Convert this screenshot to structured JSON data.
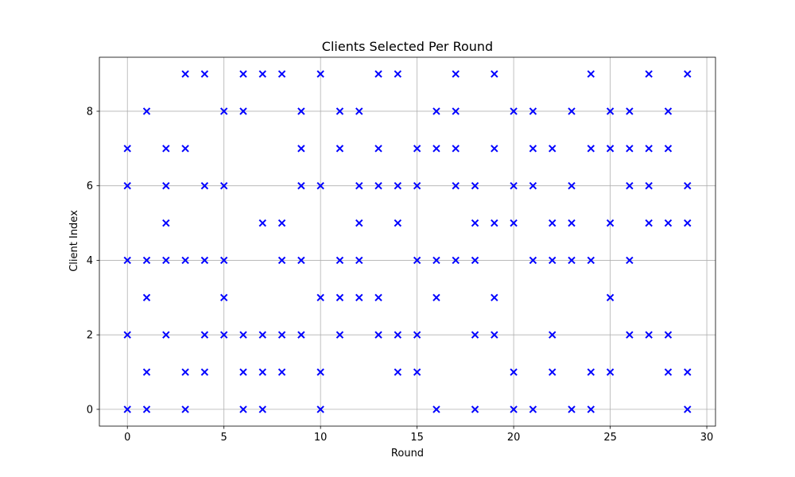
{
  "chart_data": {
    "type": "scatter",
    "title": "Clients Selected Per Round",
    "xlabel": "Round",
    "ylabel": "Client Index",
    "xlim": [
      -1.45,
      30.45
    ],
    "ylim": [
      -0.45,
      9.45
    ],
    "xticks": [
      0,
      5,
      10,
      15,
      20,
      25,
      30
    ],
    "yticks": [
      0,
      2,
      4,
      6,
      8
    ],
    "grid": true,
    "marker": "x",
    "marker_color": "#0000ff",
    "rounds": [
      {
        "x": 0,
        "clients": [
          0,
          2,
          4,
          6,
          7
        ]
      },
      {
        "x": 1,
        "clients": [
          0,
          1,
          3,
          4,
          8
        ]
      },
      {
        "x": 2,
        "clients": [
          2,
          4,
          5,
          6,
          7
        ]
      },
      {
        "x": 3,
        "clients": [
          0,
          1,
          4,
          7,
          9
        ]
      },
      {
        "x": 4,
        "clients": [
          1,
          2,
          4,
          6,
          9
        ]
      },
      {
        "x": 5,
        "clients": [
          2,
          3,
          4,
          6,
          8
        ]
      },
      {
        "x": 6,
        "clients": [
          0,
          1,
          2,
          8,
          9
        ]
      },
      {
        "x": 7,
        "clients": [
          0,
          1,
          2,
          5,
          9
        ]
      },
      {
        "x": 8,
        "clients": [
          1,
          2,
          4,
          5,
          9
        ]
      },
      {
        "x": 9,
        "clients": [
          2,
          4,
          6,
          7,
          8
        ]
      },
      {
        "x": 10,
        "clients": [
          0,
          1,
          3,
          6,
          9
        ]
      },
      {
        "x": 11,
        "clients": [
          2,
          3,
          4,
          7,
          8
        ]
      },
      {
        "x": 12,
        "clients": [
          3,
          4,
          5,
          6,
          8
        ]
      },
      {
        "x": 13,
        "clients": [
          2,
          3,
          6,
          7,
          9
        ]
      },
      {
        "x": 14,
        "clients": [
          1,
          2,
          5,
          6,
          9
        ]
      },
      {
        "x": 15,
        "clients": [
          1,
          2,
          4,
          6,
          7
        ]
      },
      {
        "x": 16,
        "clients": [
          0,
          3,
          4,
          7,
          8
        ]
      },
      {
        "x": 17,
        "clients": [
          4,
          6,
          7,
          8,
          9
        ]
      },
      {
        "x": 18,
        "clients": [
          0,
          2,
          4,
          5,
          6
        ]
      },
      {
        "x": 19,
        "clients": [
          2,
          3,
          5,
          7,
          9
        ]
      },
      {
        "x": 20,
        "clients": [
          0,
          1,
          5,
          6,
          8
        ]
      },
      {
        "x": 21,
        "clients": [
          0,
          4,
          6,
          7,
          8
        ]
      },
      {
        "x": 22,
        "clients": [
          1,
          2,
          4,
          5,
          7
        ]
      },
      {
        "x": 23,
        "clients": [
          0,
          4,
          5,
          6,
          8
        ]
      },
      {
        "x": 24,
        "clients": [
          0,
          1,
          4,
          7,
          9
        ]
      },
      {
        "x": 25,
        "clients": [
          1,
          3,
          5,
          7,
          8
        ]
      },
      {
        "x": 26,
        "clients": [
          2,
          4,
          6,
          7,
          8
        ]
      },
      {
        "x": 27,
        "clients": [
          2,
          5,
          6,
          7,
          9
        ]
      },
      {
        "x": 28,
        "clients": [
          1,
          2,
          5,
          7,
          8
        ]
      },
      {
        "x": 29,
        "clients": [
          0,
          1,
          5,
          6,
          9
        ]
      }
    ]
  }
}
